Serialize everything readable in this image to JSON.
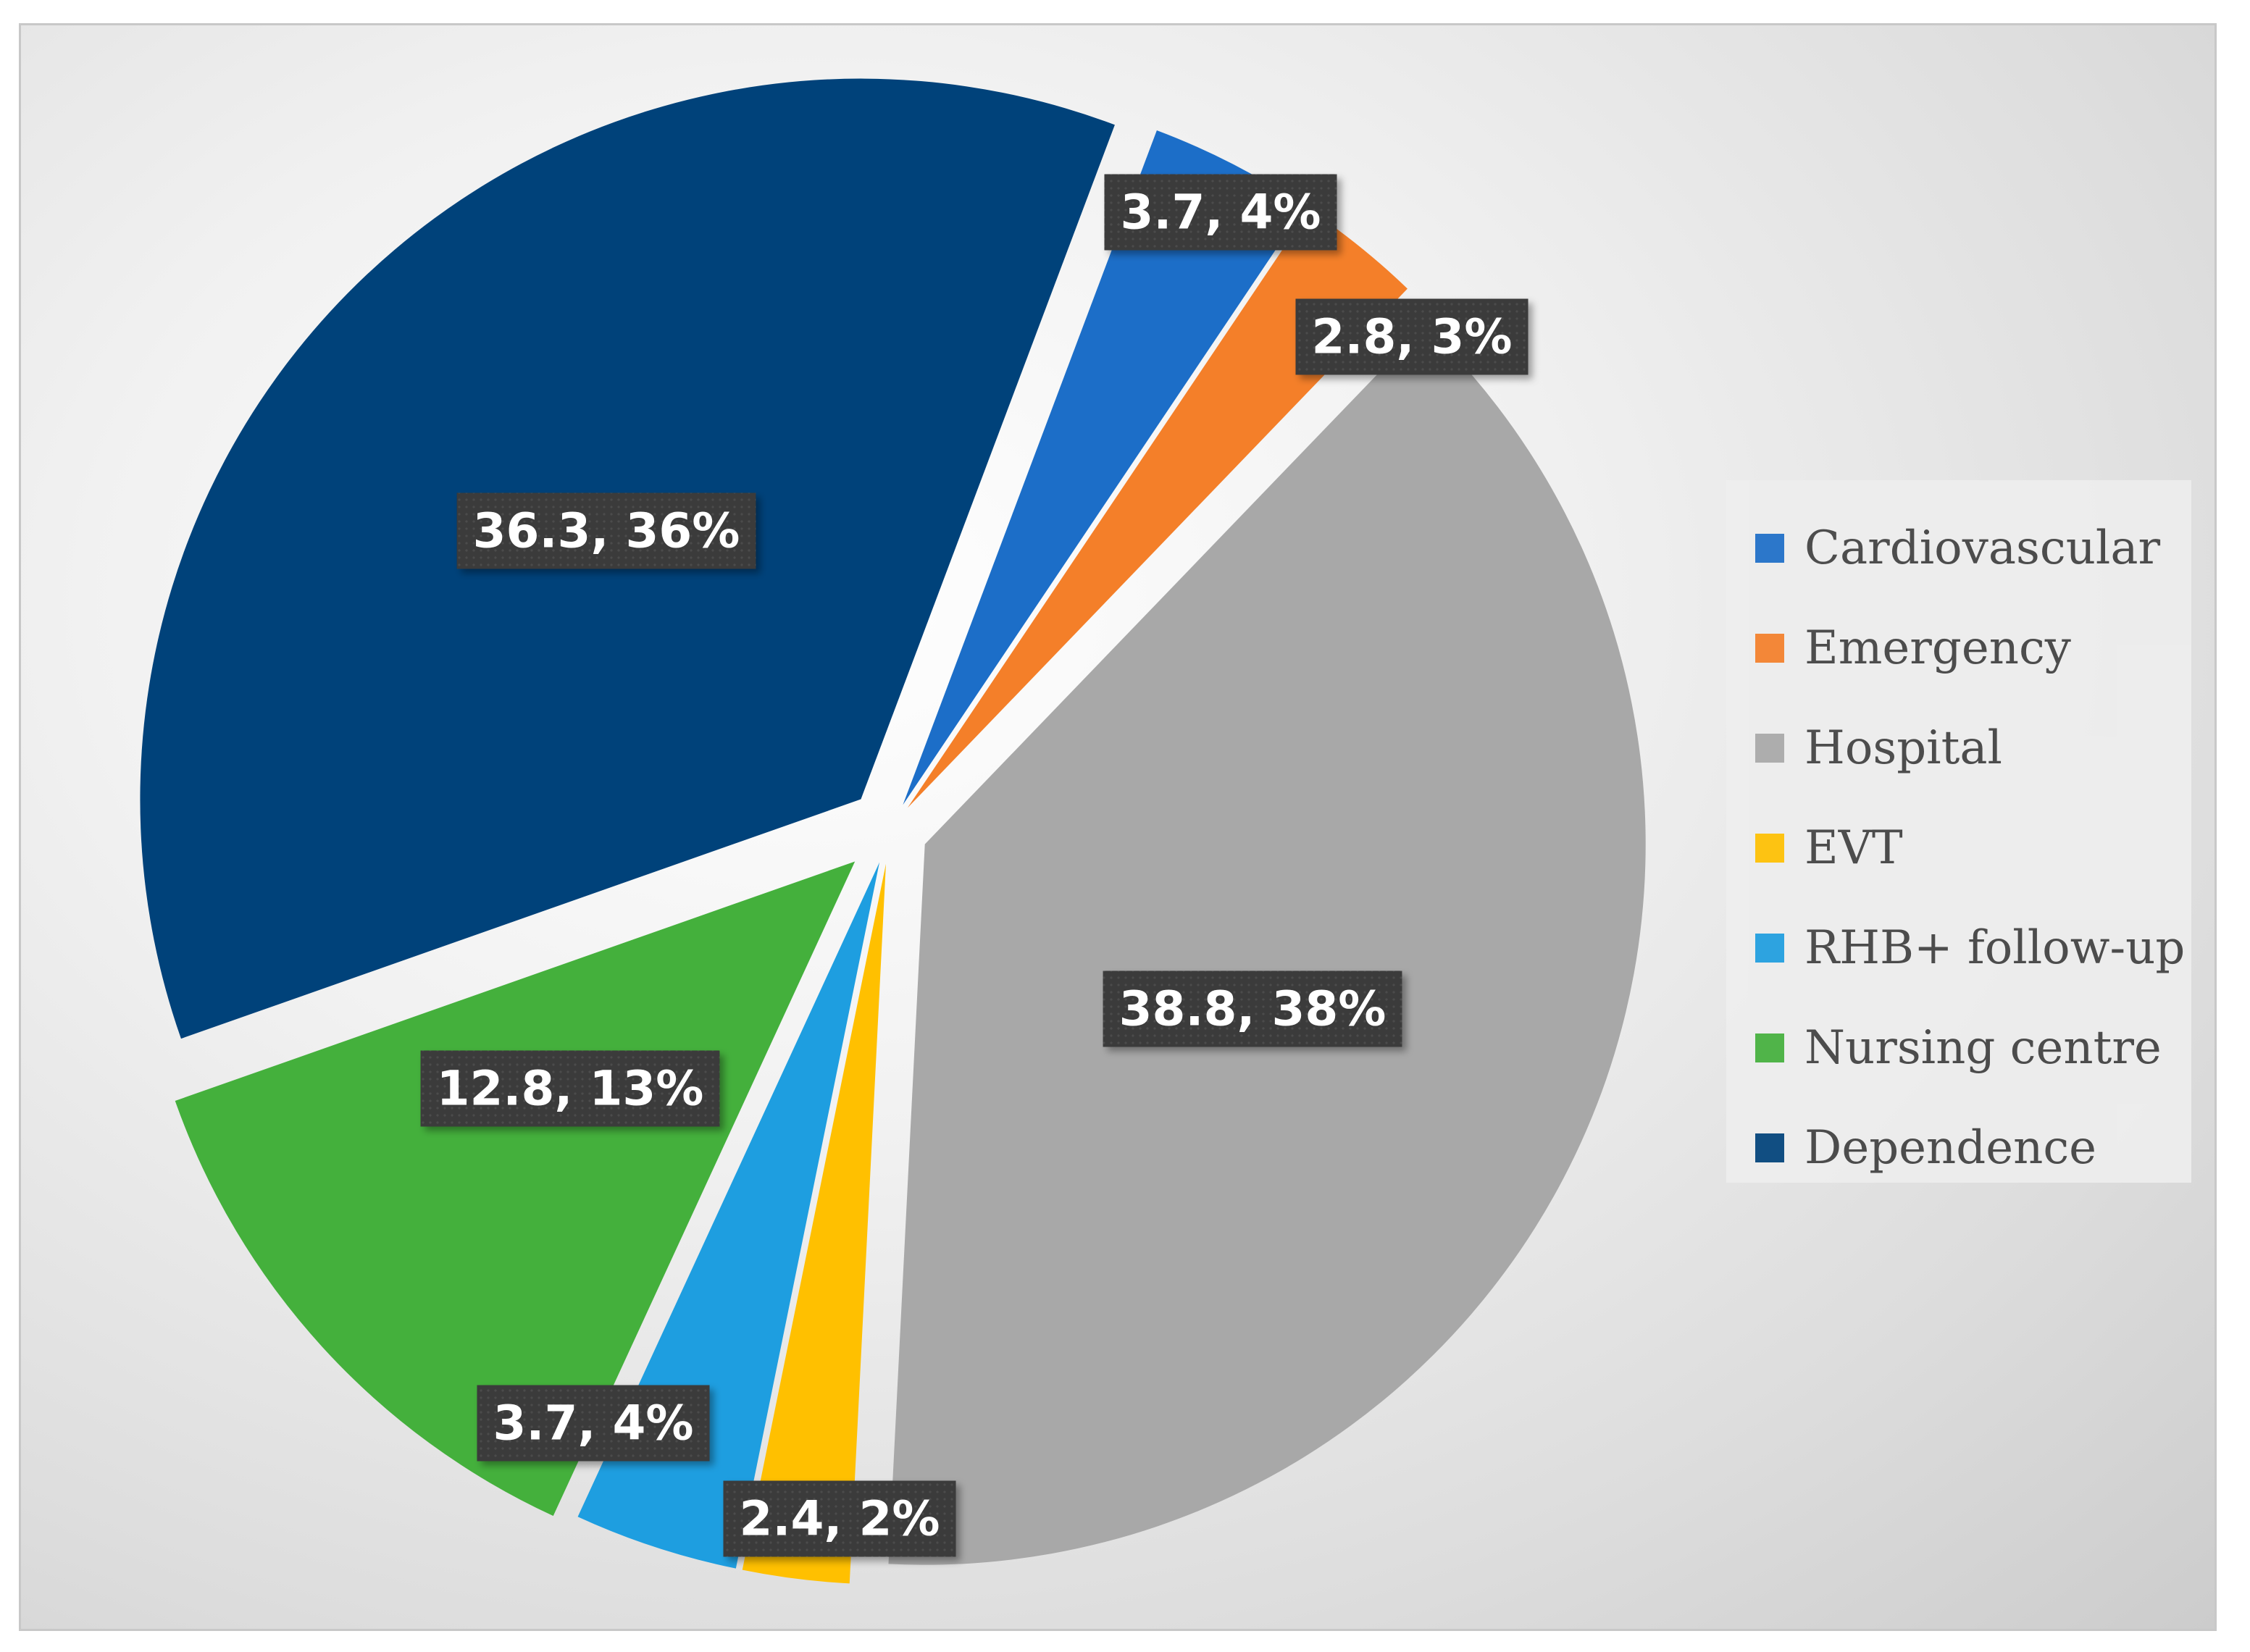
{
  "chart_data": {
    "type": "pie",
    "title": "",
    "slices": [
      {
        "name": "Cardiovascular",
        "value": 3.7,
        "percent": "4%",
        "label": "3.7, 4%",
        "color": "#1c6ec8"
      },
      {
        "name": "Emergency",
        "value": 2.8,
        "percent": "3%",
        "label": "2.8, 3%",
        "color": "#f47f29"
      },
      {
        "name": "Hospital",
        "value": 38.8,
        "percent": "38%",
        "label": "38.8, 38%",
        "color": "#a8a8a8"
      },
      {
        "name": "EVT",
        "value": 2.4,
        "percent": "2%",
        "label": "2.4, 2%",
        "color": "#ffc000"
      },
      {
        "name": "RHB+ follow-up",
        "value": 3.7,
        "percent": "4%",
        "label": "3.7, 4%",
        "color": "#1e9ee0"
      },
      {
        "name": "Nursing centre",
        "value": 12.8,
        "percent": "13%",
        "label": "12.8, 13%",
        "color": "#44b03c"
      },
      {
        "name": "Dependence",
        "value": 36.3,
        "percent": "36%",
        "label": "36.3, 36%",
        "color": "#00427a"
      }
    ],
    "legend_position": "right",
    "exploded": true
  }
}
